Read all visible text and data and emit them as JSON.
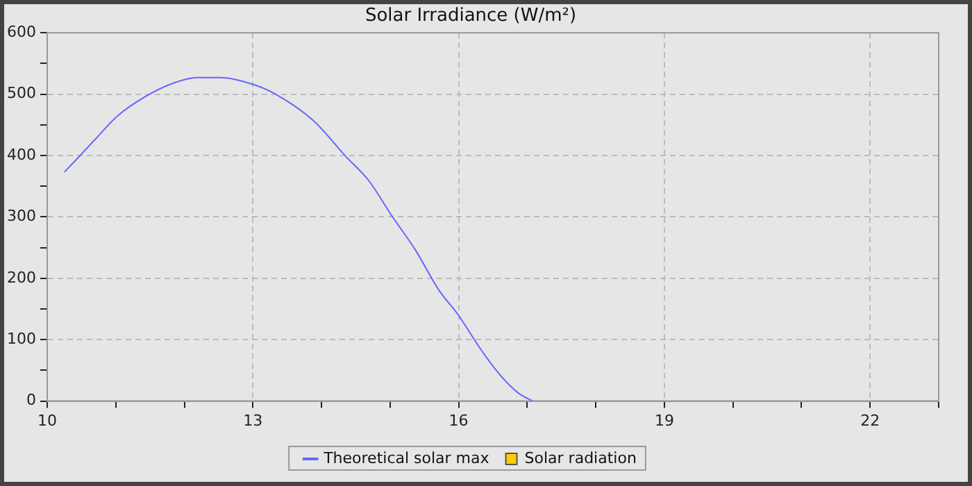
{
  "chart_data": {
    "type": "line",
    "title": "Solar Irradiance (W/m²)",
    "xlim": [
      10,
      23
    ],
    "xticks": [
      10,
      {
        "value": 11,
        "label": null
      },
      {
        "value": 12,
        "label": null
      },
      13,
      {
        "value": 14,
        "label": null
      },
      {
        "value": 15,
        "label": null
      },
      16,
      {
        "value": 17,
        "label": null
      },
      {
        "value": 18,
        "label": null
      },
      19,
      {
        "value": 20,
        "label": null
      },
      {
        "value": 21,
        "label": null
      },
      22,
      {
        "value": 23,
        "label": null
      }
    ],
    "ylim": [
      0,
      600
    ],
    "yticks": [
      0,
      {
        "value": 50,
        "label": null
      },
      100,
      {
        "value": 150,
        "label": null
      },
      200,
      {
        "value": 250,
        "label": null
      },
      300,
      {
        "value": 350,
        "label": null
      },
      400,
      {
        "value": 450,
        "label": null
      },
      500,
      {
        "value": 550,
        "label": null
      },
      600
    ],
    "grid": true,
    "legend": "bottom",
    "marker": "none",
    "line_style": "solid",
    "series": [
      {
        "name": "Theoretical solar max",
        "color": "#6666ff",
        "x": [
          10.25,
          10.48,
          10.68,
          11.02,
          11.43,
          11.84,
          12.18,
          12.52,
          13.0,
          13.33,
          13.88,
          14.35,
          14.69,
          15.03,
          15.37,
          15.71,
          15.99,
          16.33,
          16.6,
          16.87,
          17.08
        ],
        "values": [
          373,
          400,
          424,
          464,
          496,
          518,
          527,
          527,
          516,
          500,
          457,
          399,
          359,
          301,
          246,
          181,
          141,
          83,
          43,
          13,
          0
        ]
      },
      {
        "name": "Solar radiation",
        "type": "scatter",
        "marker": "square",
        "color": "#ffcc00"
      }
    ]
  }
}
